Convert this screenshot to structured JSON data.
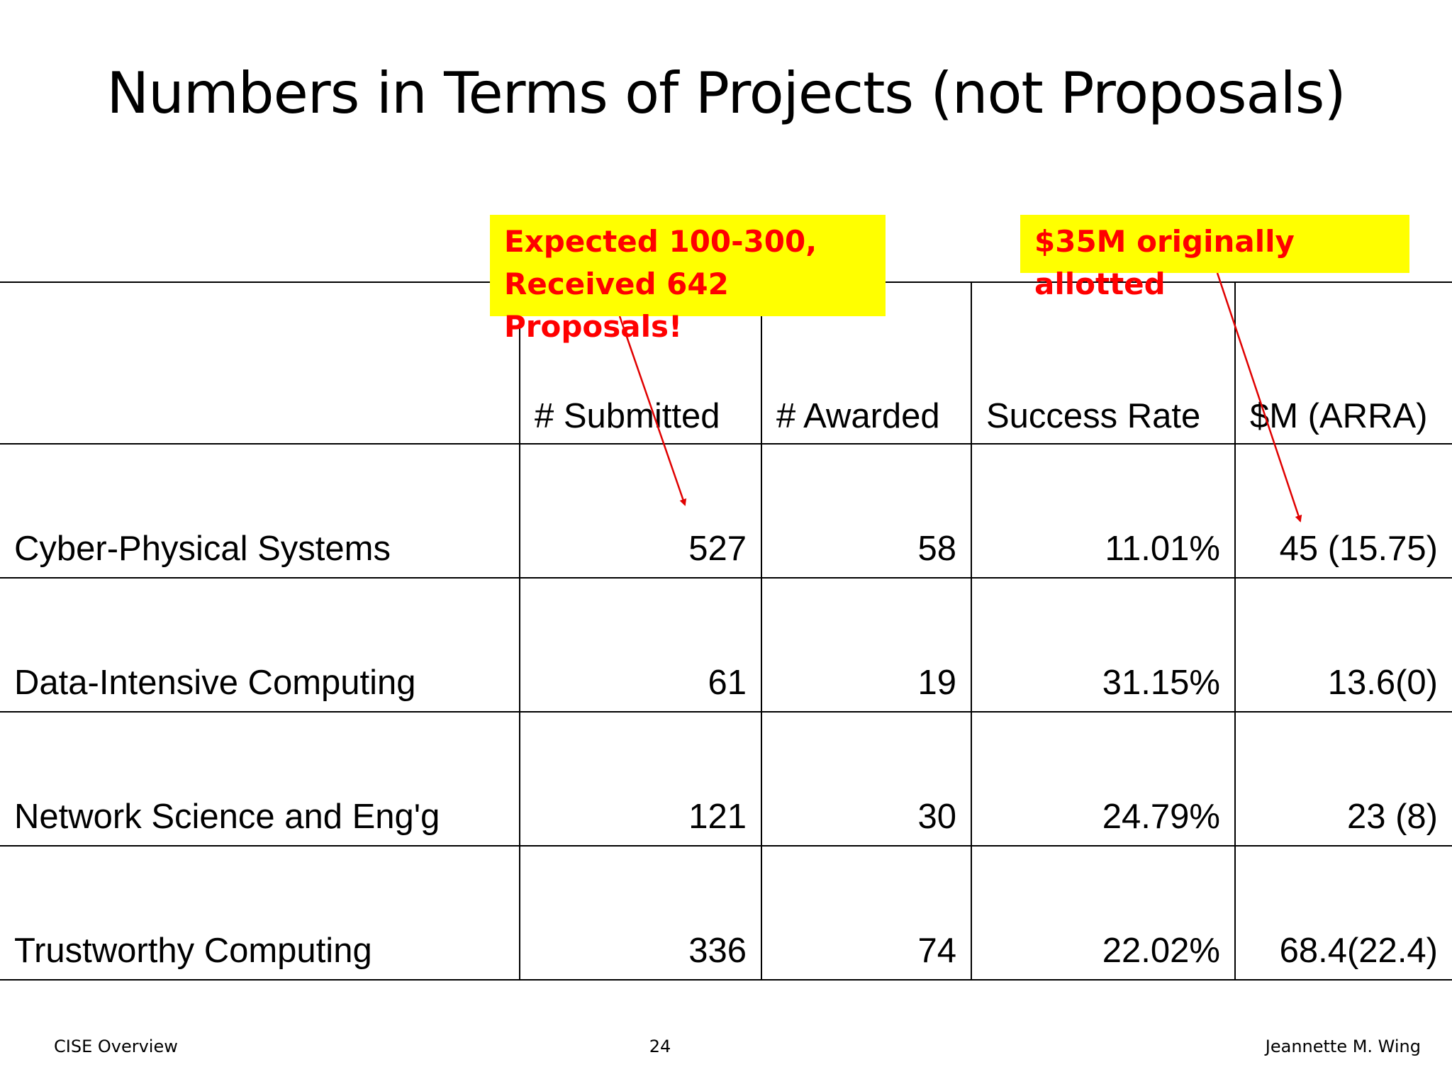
{
  "title": "Numbers in Terms of Projects (not Proposals)",
  "table": {
    "headers": [
      "",
      "# Submitted",
      "# Awarded",
      "Success Rate",
      "$M (ARRA)"
    ],
    "rows": [
      [
        "Cyber-Physical Systems",
        "527",
        "58",
        "11.01%",
        "45 (15.75)"
      ],
      [
        "Data-Intensive Computing",
        "61",
        "19",
        "31.15%",
        "13.6(0)"
      ],
      [
        "Network Science and Eng'g",
        "121",
        "30",
        "24.79%",
        "23 (8)"
      ],
      [
        "Trustworthy Computing",
        "336",
        "74",
        "22.02%",
        "68.4(22.4)"
      ]
    ]
  },
  "callouts": {
    "submitted_line1": "Expected 100-300,",
    "submitted_line2": "Received 642 Proposals!",
    "arra": "$35M originally allotted"
  },
  "colors": {
    "callout_bg": "#ffff00",
    "callout_text": "#ff0000",
    "arrow": "#e00000"
  },
  "footer": {
    "left": "CISE Overview",
    "center": "24",
    "right": "Jeannette M. Wing"
  }
}
